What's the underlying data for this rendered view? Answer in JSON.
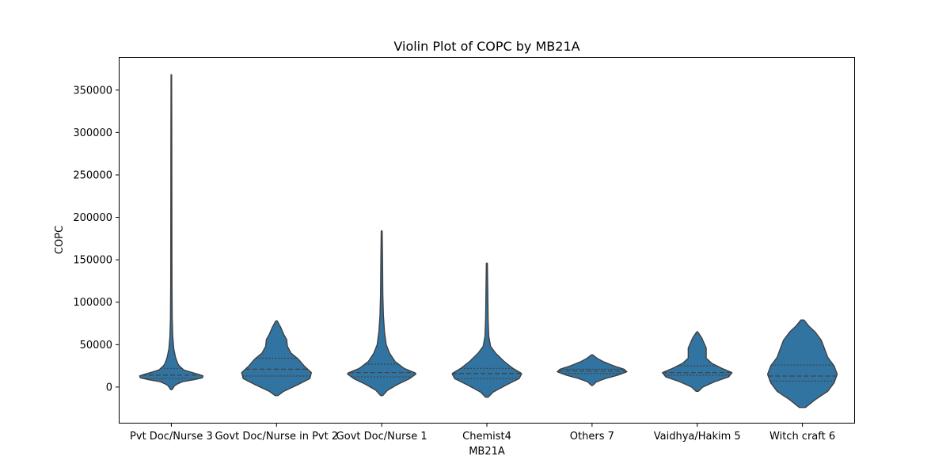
{
  "chart_data": {
    "type": "violin",
    "title": "Violin Plot of COPC by MB21A",
    "xlabel": "MB21A",
    "ylabel": "COPC",
    "ylim": [
      -43000,
      389000
    ],
    "yticks": [
      0,
      50000,
      100000,
      150000,
      200000,
      250000,
      300000,
      350000
    ],
    "ytick_labels": [
      "0",
      "50000",
      "100000",
      "150000",
      "200000",
      "250000",
      "300000",
      "350000"
    ],
    "fill_color": "#3274a1",
    "edge_color": "#404040",
    "inner": "quartile",
    "categories": [
      "Pvt Doc/Nurse 3",
      "Govt Doc/Nurse in Pvt 2",
      "Govt Doc/Nurse 1",
      "Chemist4",
      "Others 7",
      "Vaidhya/Hakim 5",
      "Witch craft 6"
    ],
    "violins": [
      {
        "category": "Pvt Doc/Nurse 3",
        "min": -3000,
        "max": 368000,
        "quartiles": [
          10000,
          14000,
          22000
        ],
        "profile": [
          [
            -3000,
            0.02
          ],
          [
            2000,
            0.1
          ],
          [
            6000,
            0.28
          ],
          [
            9000,
            0.7
          ],
          [
            12000,
            1.0
          ],
          [
            15000,
            0.78
          ],
          [
            20000,
            0.36
          ],
          [
            26000,
            0.2
          ],
          [
            35000,
            0.12
          ],
          [
            45000,
            0.07
          ],
          [
            60000,
            0.04
          ],
          [
            80000,
            0.025
          ],
          [
            120000,
            0.018
          ],
          [
            200000,
            0.015
          ],
          [
            300000,
            0.012
          ],
          [
            368000,
            0.008
          ]
        ]
      },
      {
        "category": "Govt Doc/Nurse in Pvt 2",
        "min": -10000,
        "max": 78000,
        "quartiles": [
          13000,
          21000,
          34000
        ],
        "profile": [
          [
            -10000,
            0.02
          ],
          [
            -5000,
            0.1
          ],
          [
            3000,
            0.3
          ],
          [
            10000,
            0.46
          ],
          [
            17000,
            0.48
          ],
          [
            25000,
            0.38
          ],
          [
            33000,
            0.3
          ],
          [
            40000,
            0.2
          ],
          [
            48000,
            0.15
          ],
          [
            56000,
            0.14
          ],
          [
            62000,
            0.1
          ],
          [
            70000,
            0.06
          ],
          [
            78000,
            0.01
          ]
        ]
      },
      {
        "category": "Govt Doc/Nurse 1",
        "min": -10000,
        "max": 184000,
        "quartiles": [
          12000,
          17000,
          27000
        ],
        "profile": [
          [
            -10000,
            0.02
          ],
          [
            -4000,
            0.1
          ],
          [
            3000,
            0.28
          ],
          [
            10000,
            0.5
          ],
          [
            16000,
            0.62
          ],
          [
            22000,
            0.4
          ],
          [
            30000,
            0.24
          ],
          [
            40000,
            0.14
          ],
          [
            50000,
            0.08
          ],
          [
            65000,
            0.05
          ],
          [
            85000,
            0.03
          ],
          [
            110000,
            0.02
          ],
          [
            150000,
            0.015
          ],
          [
            184000,
            0.008
          ]
        ]
      },
      {
        "category": "Chemist4",
        "min": -12000,
        "max": 146000,
        "quartiles": [
          10000,
          16000,
          22000
        ],
        "profile": [
          [
            -12000,
            0.02
          ],
          [
            -6000,
            0.1
          ],
          [
            2000,
            0.3
          ],
          [
            10000,
            0.52
          ],
          [
            16000,
            0.56
          ],
          [
            22000,
            0.42
          ],
          [
            30000,
            0.28
          ],
          [
            40000,
            0.14
          ],
          [
            48000,
            0.06
          ],
          [
            60000,
            0.03
          ],
          [
            80000,
            0.02
          ],
          [
            110000,
            0.015
          ],
          [
            146000,
            0.008
          ]
        ]
      },
      {
        "category": "Others 7",
        "min": 2000,
        "max": 38000,
        "quartiles": [
          16000,
          19000,
          21000
        ],
        "profile": [
          [
            2000,
            0.02
          ],
          [
            6000,
            0.12
          ],
          [
            10000,
            0.38
          ],
          [
            14000,
            0.74
          ],
          [
            18000,
            1.0
          ],
          [
            21000,
            0.92
          ],
          [
            25000,
            0.62
          ],
          [
            30000,
            0.32
          ],
          [
            34000,
            0.14
          ],
          [
            38000,
            0.02
          ]
        ]
      },
      {
        "category": "Vaidhya/Hakim 5",
        "min": -5000,
        "max": 65000,
        "quartiles": [
          14000,
          17000,
          25000
        ],
        "profile": [
          [
            -5000,
            0.02
          ],
          [
            0,
            0.1
          ],
          [
            6000,
            0.3
          ],
          [
            12000,
            0.56
          ],
          [
            17000,
            0.62
          ],
          [
            22000,
            0.44
          ],
          [
            28000,
            0.26
          ],
          [
            34000,
            0.16
          ],
          [
            40000,
            0.16
          ],
          [
            46000,
            0.16
          ],
          [
            52000,
            0.12
          ],
          [
            58000,
            0.08
          ],
          [
            65000,
            0.01
          ]
        ]
      },
      {
        "category": "Witch craft 6",
        "min": -24000,
        "max": 79000,
        "quartiles": [
          7000,
          13000,
          26000
        ],
        "profile": [
          [
            -24000,
            0.02
          ],
          [
            -15000,
            0.08
          ],
          [
            -5000,
            0.16
          ],
          [
            5000,
            0.2
          ],
          [
            15000,
            0.22
          ],
          [
            25000,
            0.2
          ],
          [
            35000,
            0.16
          ],
          [
            45000,
            0.14
          ],
          [
            55000,
            0.12
          ],
          [
            65000,
            0.08
          ],
          [
            72000,
            0.04
          ],
          [
            79000,
            0.01
          ]
        ]
      }
    ]
  }
}
